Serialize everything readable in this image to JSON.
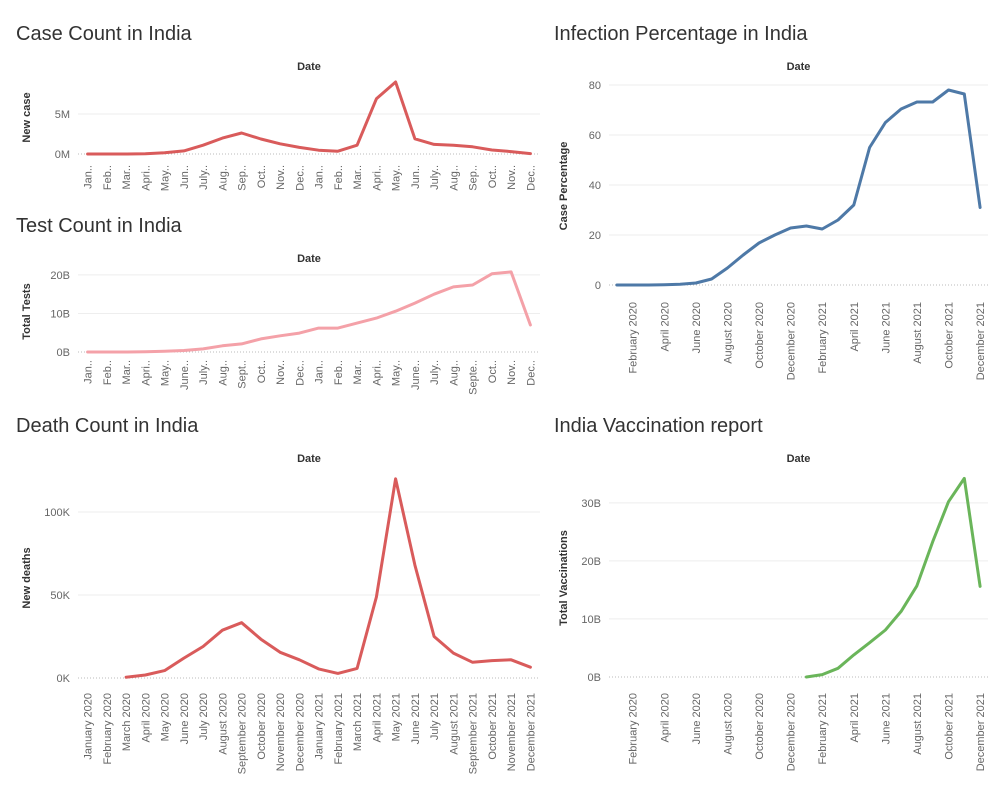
{
  "chart_data": [
    {
      "type": "line",
      "title": "Case Count in India",
      "x_header": "Date",
      "ylabel": "New case",
      "color": "#d95b5b",
      "categories": [
        "Jan..",
        "Feb..",
        "Mar..",
        "Apri..",
        "May..",
        "Jun..",
        "July..",
        "Aug..",
        "Sep..",
        "Oct..",
        "Nov..",
        "Dec..",
        "Jan..",
        "Feb..",
        "Mar..",
        "Apri..",
        "May..",
        "Jun..",
        "July..",
        "Aug..",
        "Sep..",
        "Oct..",
        "Nov..",
        "Dec.."
      ],
      "values": [
        2000,
        2000,
        1000,
        30000,
        160000,
        390000,
        1100000,
        1990000,
        2620000,
        1870000,
        1280000,
        820000,
        470000,
        350000,
        1100000,
        6900000,
        9000000,
        1900000,
        1200000,
        1100000,
        900000,
        500000,
        300000,
        50000
      ],
      "ylim": [
        -750000,
        9875000
      ],
      "yticks": [
        {
          "value": 0,
          "label": "0M"
        },
        {
          "value": 5000000,
          "label": "5M"
        }
      ],
      "grid": true
    },
    {
      "type": "line",
      "title": "Test Count in India",
      "x_header": "Date",
      "ylabel": "Total Tests",
      "color": "#f4a1a8",
      "categories": [
        "Jan..",
        "Feb..",
        "Mar..",
        "Apri..",
        "May..",
        "June..",
        "July..",
        "Aug..",
        "Sept..",
        "Oct..",
        "Nov..",
        "Dec..",
        "Jan..",
        "Feb..",
        "Mar..",
        "Apri..",
        "May..",
        "June..",
        "July..",
        "Aug..",
        "Septe..",
        "Oct..",
        "Nov..",
        "Dec.."
      ],
      "values": [
        0,
        0,
        0,
        50000000,
        200000000,
        400000000,
        800000000,
        1600000000,
        2100000000,
        3400000000,
        4200000000,
        4900000000,
        6200000000,
        6200000000,
        7500000000,
        8800000000,
        10600000000,
        12700000000,
        15000000000,
        16900000000,
        17400000000,
        20300000000,
        20800000000,
        7000000000
      ],
      "ylim": [
        -780000000,
        21800000000
      ],
      "yticks": [
        {
          "value": 0,
          "label": "0B"
        },
        {
          "value": 10000000000,
          "label": "10B"
        },
        {
          "value": 20000000000,
          "label": "20B"
        }
      ],
      "grid": true
    },
    {
      "type": "line",
      "title": "Death Count in India",
      "x_header": "Date",
      "ylabel": "New deaths",
      "color": "#d95b5b",
      "categories": [
        "January 2020",
        "February 2020",
        "March 2020",
        "April 2020",
        "May 2020",
        "June 2020",
        "July 2020",
        "August 2020",
        "September 2020",
        "October 2020",
        "November 2020",
        "December 2020",
        "January 2021",
        "February 2021",
        "March 2021",
        "April 2021",
        "May 2021",
        "June 2021",
        "July 2021",
        "August 2021",
        "September 2021",
        "October 2021",
        "November 2021",
        "December 2021"
      ],
      "values": [
        null,
        null,
        500,
        1800,
        4500,
        12000,
        19000,
        28800,
        33300,
        23400,
        15500,
        11000,
        5500,
        2800,
        5800,
        48800,
        120000,
        68000,
        25000,
        15000,
        9500,
        10500,
        11000,
        6500
      ],
      "ylim": [
        -6000,
        126500
      ],
      "yticks": [
        {
          "value": 0,
          "label": "0K"
        },
        {
          "value": 50000,
          "label": "50K"
        },
        {
          "value": 100000,
          "label": "100K"
        }
      ],
      "grid": true
    },
    {
      "type": "line",
      "title": "Infection Percentage in India",
      "x_header": "Date",
      "ylabel": "Case Percentage",
      "color": "#4e79a7",
      "categories": [
        null,
        "February 2020",
        null,
        "April 2020",
        null,
        "June 2020",
        null,
        "August 2020",
        null,
        "October 2020",
        null,
        "December 2020",
        null,
        "February 2021",
        null,
        "April 2021",
        null,
        "June 2021",
        null,
        "August 2021",
        null,
        "October 2021",
        null,
        "December 2021"
      ],
      "values": [
        0,
        0,
        0,
        0.1,
        0.3,
        0.8,
        2.4,
        6.8,
        12,
        16.8,
        20,
        22.8,
        23.6,
        22.4,
        26,
        32,
        55,
        65,
        70.4,
        73.2,
        73.2,
        78,
        76.4,
        31
      ],
      "ylim": [
        -4.8,
        84
      ],
      "yticks": [
        0,
        20,
        40,
        60,
        80
      ],
      "grid": true
    },
    {
      "type": "line",
      "title": "India Vaccination report",
      "x_header": "Date",
      "ylabel": "Total Vaccinations",
      "color": "#6ab55a",
      "categories": [
        null,
        "February 2020",
        null,
        "April 2020",
        null,
        "June 2020",
        null,
        "August 2020",
        null,
        "October 2020",
        null,
        "December 2020",
        null,
        "February 2021",
        null,
        "April 2021",
        null,
        "June 2021",
        null,
        "August 2021",
        null,
        "October 2021",
        null,
        "December 2021"
      ],
      "values": [
        null,
        null,
        null,
        null,
        null,
        null,
        null,
        null,
        null,
        null,
        null,
        null,
        0,
        400000000,
        1500000000,
        3800000000,
        5900000000,
        8100000000,
        11300000000,
        15700000000,
        23300000000,
        30200000000,
        34200000000,
        15600000000
      ],
      "ylim": [
        -1900000000,
        36000000000
      ],
      "yticks": [
        {
          "value": 0,
          "label": "0B"
        },
        {
          "value": 10000000000,
          "label": "10B"
        },
        {
          "value": 20000000000,
          "label": "20B"
        },
        {
          "value": 30000000000,
          "label": "30B"
        }
      ],
      "grid": true
    }
  ]
}
